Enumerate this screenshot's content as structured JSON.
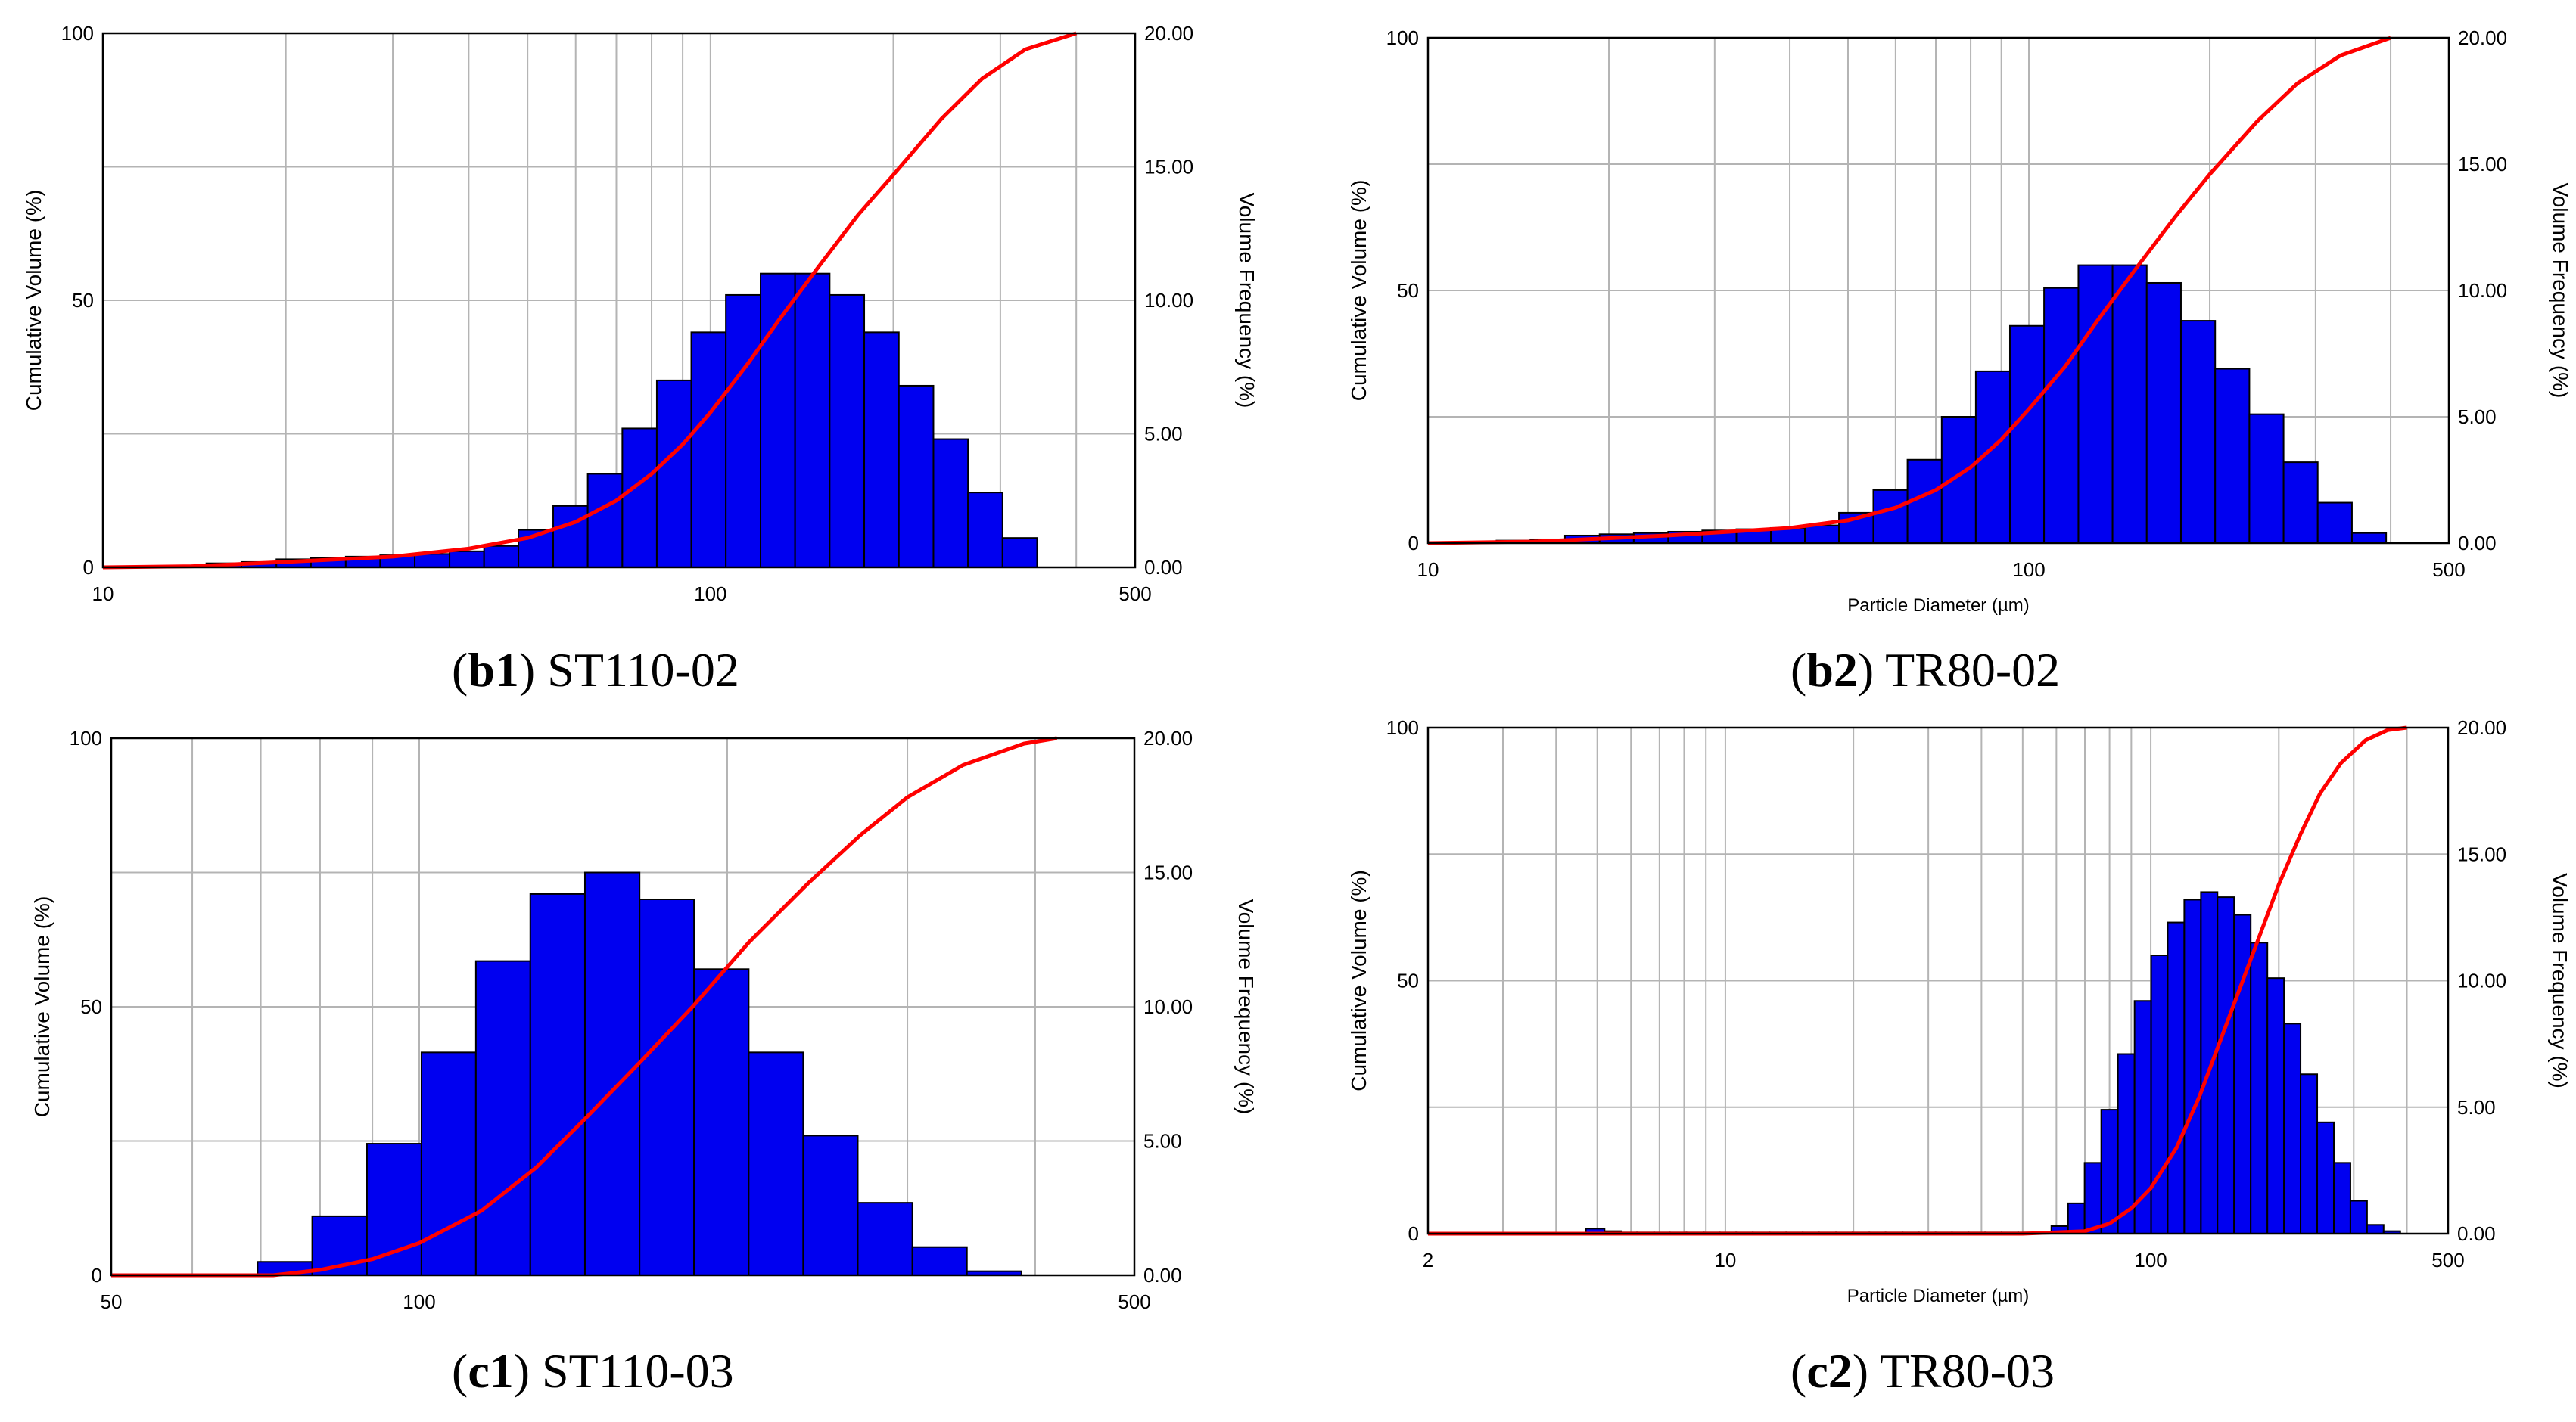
{
  "chart_data": [
    {
      "type": "bar",
      "panel_id": "b1",
      "caption": {
        "label": "b1",
        "sample": "ST110-02"
      },
      "xscale": "log",
      "xlim": [
        10,
        500
      ],
      "x_tick_labels": [
        "10",
        "100",
        "500"
      ],
      "xlabel": "",
      "left_axis": {
        "label": "Cumulative Volume (%)",
        "ylim": [
          0,
          100
        ],
        "tick_labels": [
          "0",
          "50",
          "100"
        ]
      },
      "right_axis": {
        "label": "Volume Frequency (%)",
        "ylim": [
          0,
          20
        ],
        "tick_labels": [
          "0.00",
          "5.00",
          "10.00",
          "15.00",
          "20.00"
        ]
      },
      "grid": true,
      "bar_color": "#0000f0",
      "line_color": "#ff0000",
      "series": [
        {
          "name": "Volume Frequency (%)",
          "axis": "right",
          "style": "histogram",
          "bin_edges": [
            10,
            11.4,
            13,
            14.8,
            16.9,
            19.3,
            22,
            25.1,
            28.6,
            32.6,
            37.2,
            42.4,
            48.3,
            55.1,
            62.8,
            71.6,
            81.6,
            93,
            106,
            120.9,
            137.8,
            157.1,
            179.1,
            204.2,
            232.8,
            265.4,
            302.5,
            344.9
          ],
          "values": [
            0,
            0,
            0.05,
            0.15,
            0.2,
            0.3,
            0.35,
            0.4,
            0.45,
            0.5,
            0.6,
            0.8,
            1.4,
            2.3,
            3.5,
            5.2,
            7,
            8.8,
            10.2,
            11,
            11,
            10.2,
            8.8,
            6.8,
            4.8,
            2.8,
            1.1
          ]
        },
        {
          "name": "Cumulative Volume (%)",
          "axis": "left",
          "style": "line",
          "x": [
            10,
            14,
            20,
            30,
            40,
            50,
            60,
            70,
            80,
            90,
            100,
            115,
            130,
            150,
            175,
            200,
            240,
            280,
            330,
            400
          ],
          "y": [
            0,
            0.2,
            1,
            2,
            3.5,
            5.5,
            8.5,
            12.5,
            17.5,
            23,
            29,
            38,
            46.5,
            56,
            66,
            73.5,
            84,
            91.5,
            97,
            100
          ]
        }
      ]
    },
    {
      "type": "bar",
      "panel_id": "b2",
      "caption": {
        "label": "b2",
        "sample": "TR80-02"
      },
      "xscale": "log",
      "xlim": [
        10,
        500
      ],
      "x_tick_labels": [
        "10",
        "100",
        "500"
      ],
      "xlabel": "Particle Diameter (µm)",
      "left_axis": {
        "label": "Cumulative Volume (%)",
        "ylim": [
          0,
          100
        ],
        "tick_labels": [
          "0",
          "50",
          "100"
        ]
      },
      "right_axis": {
        "label": "Volume Frequency (%)",
        "ylim": [
          0,
          20
        ],
        "tick_labels": [
          "0.00",
          "5.00",
          "10.00",
          "15.00",
          "20.00"
        ]
      },
      "grid": true,
      "bar_color": "#0000f0",
      "line_color": "#ff0000",
      "series": [
        {
          "name": "Volume Frequency (%)",
          "axis": "right",
          "style": "histogram",
          "bin_edges": [
            10,
            11.4,
            13,
            14.8,
            16.9,
            19.3,
            22,
            25.1,
            28.6,
            32.6,
            37.2,
            42.4,
            48.3,
            55.1,
            62.8,
            71.6,
            81.6,
            93,
            106,
            120.9,
            137.8,
            157.1,
            179.1,
            204.2,
            232.8,
            265.4,
            302.5,
            344.9,
            393.2
          ],
          "values": [
            0,
            0,
            0.1,
            0.15,
            0.3,
            0.35,
            0.4,
            0.45,
            0.5,
            0.55,
            0.6,
            0.7,
            1.2,
            2.1,
            3.3,
            5,
            6.8,
            8.6,
            10.1,
            11,
            11,
            10.3,
            8.8,
            6.9,
            5.1,
            3.2,
            1.6,
            0.4
          ]
        },
        {
          "name": "Cumulative Volume (%)",
          "axis": "left",
          "style": "line",
          "x": [
            10,
            15,
            25,
            40,
            50,
            60,
            70,
            80,
            90,
            100,
            115,
            130,
            150,
            175,
            200,
            240,
            280,
            330,
            400
          ],
          "y": [
            0,
            0.3,
            1.5,
            3,
            4.5,
            7,
            10.5,
            15,
            20.5,
            26.5,
            35,
            44,
            54,
            64.5,
            73,
            83.5,
            91,
            96.5,
            100
          ]
        }
      ]
    },
    {
      "type": "bar",
      "panel_id": "c1",
      "caption": {
        "label": "c1",
        "sample": "ST110-03"
      },
      "xscale": "log",
      "xlim": [
        50,
        500
      ],
      "x_tick_labels": [
        "50",
        "100",
        "500"
      ],
      "xlabel": "",
      "left_axis": {
        "label": "Cumulative Volume (%)",
        "ylim": [
          0,
          100
        ],
        "tick_labels": [
          "0",
          "50",
          "100"
        ]
      },
      "right_axis": {
        "label": "Volume Frequency (%)",
        "ylim": [
          0,
          20
        ],
        "tick_labels": [
          "0.00",
          "5.00",
          "10.00",
          "15.00",
          "20.00"
        ]
      },
      "grid": true,
      "bar_color": "#0000f0",
      "line_color": "#ff0000",
      "series": [
        {
          "name": "Volume Frequency (%)",
          "axis": "right",
          "style": "histogram",
          "bin_edges": [
            69.5,
            78.6,
            88.9,
            100.5,
            113.6,
            128.4,
            145.2,
            164.2,
            185.6,
            209.9,
            237.3,
            268.3,
            303.4,
            343,
            387.8
          ],
          "values": [
            0.5,
            2.2,
            4.9,
            8.3,
            11.7,
            14.2,
            15,
            14,
            11.4,
            8.3,
            5.2,
            2.7,
            1.05,
            0.15
          ]
        },
        {
          "name": "Cumulative Volume (%)",
          "axis": "left",
          "style": "line",
          "x": [
            50,
            72,
            80,
            90,
            100,
            115,
            130,
            145,
            165,
            185,
            210,
            240,
            270,
            300,
            340,
            390,
            420
          ],
          "y": [
            0,
            0,
            1,
            3,
            6,
            12,
            20,
            29,
            40,
            50,
            62,
            73,
            82,
            89,
            95,
            99,
            100
          ]
        }
      ]
    },
    {
      "type": "bar",
      "panel_id": "c2",
      "caption": {
        "label": "c2",
        "sample": "TR80-03"
      },
      "xscale": "log",
      "xlim": [
        2,
        500
      ],
      "x_tick_labels": [
        "2",
        "10",
        "100",
        "500"
      ],
      "xlabel": "Particle Diameter (µm)",
      "left_axis": {
        "label": "Cumulative Volume (%)",
        "ylim": [
          0,
          100
        ],
        "tick_labels": [
          "0",
          "50",
          "100"
        ]
      },
      "right_axis": {
        "label": "Volume Frequency (%)",
        "ylim": [
          0,
          20
        ],
        "tick_labels": [
          "0.00",
          "5.00",
          "10.00",
          "15.00",
          "20.00"
        ]
      },
      "grid": true,
      "bar_color": "#0000f0",
      "line_color": "#ff0000",
      "series": [
        {
          "name": "Volume Frequency (%)",
          "axis": "right",
          "style": "histogram",
          "bin_edges": [
            4.7,
            5.2,
            5.7,
            6.2,
            6.8,
            7.4,
            8.1,
            8.9,
            9.7,
            10.6,
            11.6,
            12.7,
            13.9,
            15.2,
            16.6,
            18.2,
            19.9,
            21.8,
            23.8,
            26.1,
            28.5,
            31.2,
            34.1,
            37.3,
            40.8,
            44.6,
            48.8,
            53.4,
            58.4,
            63.9,
            69.9,
            76.5,
            83.7,
            91.6,
            100.2,
            109.6,
            119.9,
            131.2,
            143.5,
            157,
            171.8,
            188,
            205.7,
            225,
            246.2,
            269.4,
            294.7,
            322.4,
            352.7,
            385.9
          ],
          "values": [
            0.2,
            0.1,
            0.05,
            0.05,
            0.05,
            0.05,
            0.05,
            0.05,
            0.05,
            0.05,
            0.05,
            0.05,
            0.05,
            0.05,
            0.05,
            0.05,
            0.05,
            0.05,
            0.05,
            0.05,
            0.05,
            0.05,
            0.05,
            0.05,
            0.05,
            0.05,
            0.05,
            0.05,
            0.3,
            1.2,
            2.8,
            4.9,
            7.1,
            9.2,
            11,
            12.3,
            13.2,
            13.5,
            13.3,
            12.6,
            11.5,
            10.1,
            8.3,
            6.3,
            4.4,
            2.8,
            1.3,
            0.35,
            0.1
          ]
        },
        {
          "name": "Cumulative Volume (%)",
          "axis": "left",
          "style": "line",
          "x": [
            2,
            10,
            50,
            70,
            80,
            90,
            100,
            115,
            130,
            150,
            175,
            200,
            225,
            250,
            280,
            320,
            360,
            400
          ],
          "y": [
            0,
            0,
            0,
            0.5,
            2,
            5,
            9,
            17,
            27,
            41,
            56,
            69,
            79,
            87,
            93,
            97.5,
            99.5,
            100
          ]
        }
      ]
    }
  ]
}
